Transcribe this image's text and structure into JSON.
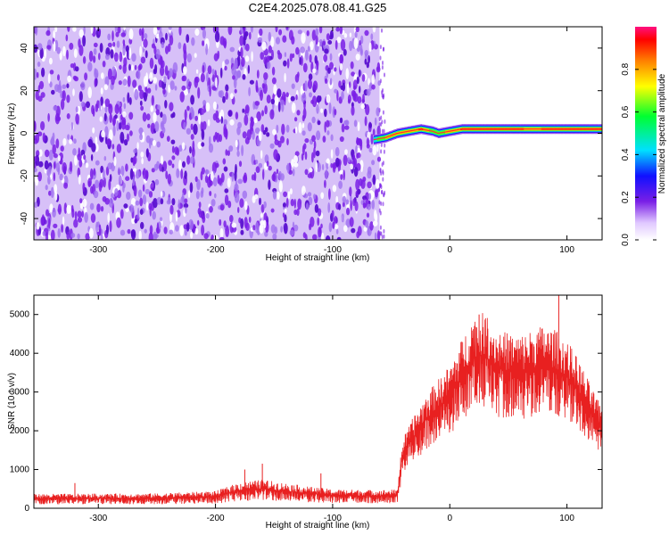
{
  "title": "C2E4.2025.078.08.41.G25",
  "colors": {
    "noise": "#7a1fe6",
    "snr_line": "#e82020",
    "frame": "#000000"
  },
  "chart_data": [
    {
      "type": "heatmap",
      "xlabel": "Height of straight line (km)",
      "ylabel": "Frequency (Hz)",
      "xlim": [
        -355,
        130
      ],
      "ylim": [
        -50,
        50
      ],
      "x_ticks": [
        -300,
        -200,
        -100,
        0,
        100
      ],
      "y_ticks": [
        -40,
        -20,
        0,
        20,
        40
      ],
      "noise_region": {
        "x_start": -355,
        "x_end": -60
      },
      "ridge": {
        "x": [
          -65,
          -55,
          -45,
          -35,
          -25,
          -15,
          -10,
          0,
          10,
          30,
          50,
          70,
          90,
          110,
          130
        ],
        "freq": [
          -3,
          -2,
          0,
          1,
          2,
          1,
          0,
          1,
          2,
          2,
          2,
          2,
          2,
          2,
          2
        ],
        "amplitude": [
          0.55,
          0.8,
          0.9,
          0.85,
          0.95,
          0.7,
          0.75,
          0.8,
          0.95,
          0.95,
          0.95,
          0.9,
          0.95,
          0.95,
          0.95
        ]
      },
      "colorbar": {
        "label": "Normalized spectral amplitude",
        "ticks": [
          0.0,
          0.2,
          0.4,
          0.6,
          0.8
        ],
        "range": [
          0,
          1
        ]
      }
    },
    {
      "type": "line",
      "xlabel": "Height of straight line (km)",
      "ylabel": "SNR (10 * v/v)",
      "xlim": [
        -355,
        130
      ],
      "ylim": [
        0,
        5500
      ],
      "x_ticks": [
        -300,
        -200,
        -100,
        0,
        100
      ],
      "y_ticks": [
        0,
        1000,
        2000,
        3000,
        4000,
        5000
      ],
      "envelope": {
        "x": [
          -355,
          -250,
          -200,
          -180,
          -160,
          -120,
          -100,
          -60,
          -45,
          -40,
          -30,
          -20,
          -10,
          0,
          10,
          20,
          30,
          40,
          60,
          80,
          90,
          100,
          110,
          120,
          130
        ],
        "y": [
          250,
          260,
          300,
          450,
          500,
          380,
          330,
          320,
          330,
          1400,
          1900,
          2300,
          2600,
          2900,
          3400,
          3900,
          3950,
          3600,
          3500,
          3700,
          3600,
          3400,
          3000,
          2500,
          2000
        ]
      },
      "spikes": [
        {
          "x": 25,
          "y": 5000
        },
        {
          "x": 93,
          "y": 5500
        },
        {
          "x": -160,
          "y": 1150
        },
        {
          "x": -175,
          "y": 1000
        },
        {
          "x": -110,
          "y": 900
        },
        {
          "x": -320,
          "y": 650
        }
      ]
    }
  ]
}
